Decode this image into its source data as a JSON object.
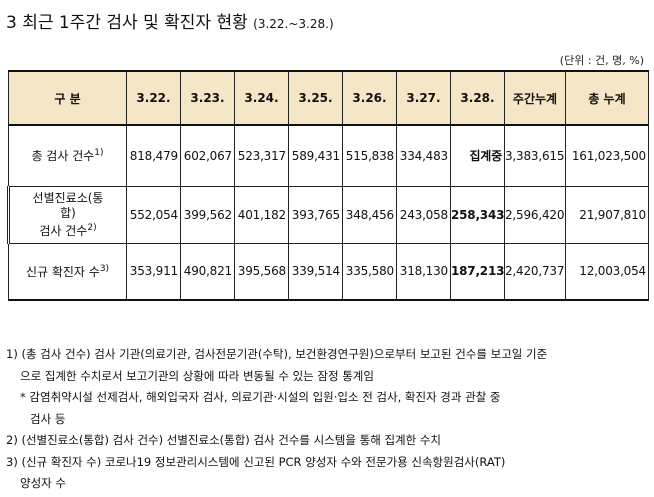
{
  "title": {
    "main": "3 최근 1주간 검사 및 확진자 현황",
    "date_range": "(3.22.~3.28.)"
  },
  "unit": "(단위 : 건, 명, %)",
  "table": {
    "headers": [
      "구 분",
      "3.22.",
      "3.23.",
      "3.24.",
      "3.25.",
      "3.26.",
      "3.27.",
      "3.28.",
      "주간누계",
      "총 누계"
    ],
    "rows": [
      {
        "label": "총 검사 건수",
        "sup": "1)",
        "values": [
          "818,479",
          "602,067",
          "523,317",
          "589,431",
          "515,838",
          "334,483",
          "집계중",
          "3,383,615",
          "161,023,500"
        ]
      },
      {
        "label_line1": "선별진료소(통",
        "label_line2": "합)",
        "label_line3": "검사 건수",
        "sup": "2)",
        "values": [
          "552,054",
          "399,562",
          "401,182",
          "393,765",
          "348,456",
          "243,058",
          "258,343",
          "2,596,420",
          "21,907,810"
        ]
      },
      {
        "label": "신규 확진자 수",
        "sup": "3)",
        "values": [
          "353,911",
          "490,821",
          "395,568",
          "339,514",
          "335,580",
          "318,130",
          "187,213",
          "2,420,737",
          "12,003,054"
        ]
      }
    ]
  },
  "notes": {
    "n1_line1": "1) (총 검사 건수) 검사 기관(의료기관, 검사전문기관(수탁), 보건환경연구원)으로부터 보고된 건수를 보고일 기준",
    "n1_line2": "으로 집계한 수치로서 보고기관의 상황에 따라 변동될 수 있는 잠정 통계임",
    "n1_sub_line1": "* 감염취약시설 선제검사, 해외입국자 검사, 의료기관·시설의 입원·입소 전 검사, 확진자 경과 관찰 중",
    "n1_sub_line2": "검사 등",
    "n2": "2) (선별진료소(통합) 검사 건수) 선별진료소(통합) 검사 건수를 시스템을 통해 집계한 수치",
    "n3_line1": "3) (신규 확진자 수) 코로나19 정보관리시스템에 신고된 PCR 양성자 수와 전문가용 신속항원검사(RAT)",
    "n3_line2": "양성자 수"
  }
}
